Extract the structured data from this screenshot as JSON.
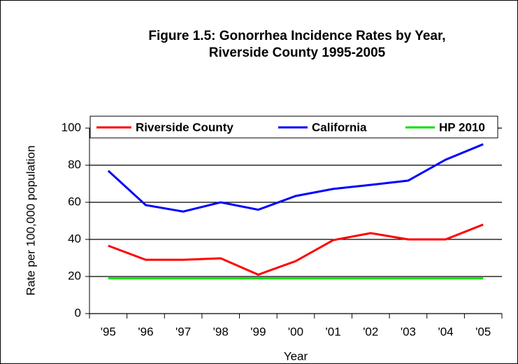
{
  "chart_data": {
    "type": "line",
    "title": [
      "Figure 1.5: Gonorrhea Incidence Rates by Year,",
      "Riverside County 1995-2005"
    ],
    "x_label": "Year",
    "y_label": "Rate per 100,000 population",
    "categories": [
      "'95",
      "'96",
      "'97",
      "'98",
      "'99",
      "'00",
      "'01",
      "'02",
      "'03",
      "'04",
      "'05"
    ],
    "series": [
      {
        "name": "Riverside County",
        "color": "#ff0000",
        "values": [
          36.6,
          29,
          29,
          29.8,
          21,
          28.3,
          39.6,
          43.4,
          40,
          40,
          48
        ]
      },
      {
        "name": "California",
        "color": "#0000ff",
        "values": [
          77,
          58.5,
          55,
          60,
          56,
          63.4,
          67.2,
          69.4,
          71.7,
          83,
          91.3
        ]
      },
      {
        "name": "HP 2010",
        "color": "#00e000",
        "values": [
          19,
          19,
          19,
          19,
          19,
          19,
          19,
          19,
          19,
          19,
          19
        ]
      }
    ],
    "ylim": [
      0,
      100
    ],
    "yticks": [
      0,
      20,
      40,
      60,
      80,
      100
    ],
    "grid": true,
    "legend": "top"
  }
}
